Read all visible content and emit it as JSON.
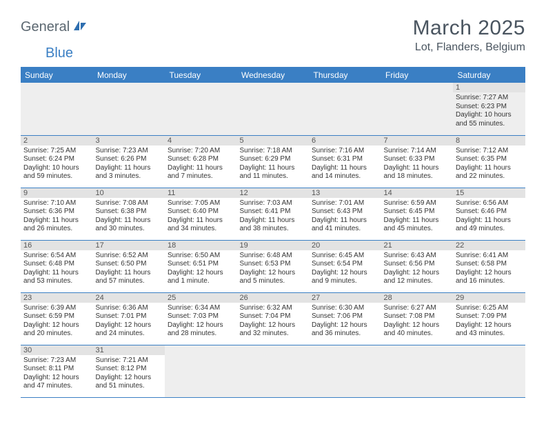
{
  "brand": {
    "name1": "General",
    "name2": "Blue"
  },
  "title": "March 2025",
  "location": "Lot, Flanders, Belgium",
  "colors": {
    "header_bg": "#3a7fc4",
    "header_text": "#ffffff",
    "daynum_bg": "#e3e3e3",
    "border": "#3a7fc4",
    "body_text": "#333333",
    "title_text": "#4a5560"
  },
  "fonts": {
    "body_pt": 10,
    "header_pt": 12,
    "title_pt": 30,
    "location_pt": 16
  },
  "weekdays": [
    "Sunday",
    "Monday",
    "Tuesday",
    "Wednesday",
    "Thursday",
    "Friday",
    "Saturday"
  ],
  "weeks": [
    [
      null,
      null,
      null,
      null,
      null,
      null,
      {
        "d": "1",
        "sr": "Sunrise: 7:27 AM",
        "ss": "Sunset: 6:23 PM",
        "dl1": "Daylight: 10 hours",
        "dl2": "and 55 minutes."
      }
    ],
    [
      {
        "d": "2",
        "sr": "Sunrise: 7:25 AM",
        "ss": "Sunset: 6:24 PM",
        "dl1": "Daylight: 10 hours",
        "dl2": "and 59 minutes."
      },
      {
        "d": "3",
        "sr": "Sunrise: 7:23 AM",
        "ss": "Sunset: 6:26 PM",
        "dl1": "Daylight: 11 hours",
        "dl2": "and 3 minutes."
      },
      {
        "d": "4",
        "sr": "Sunrise: 7:20 AM",
        "ss": "Sunset: 6:28 PM",
        "dl1": "Daylight: 11 hours",
        "dl2": "and 7 minutes."
      },
      {
        "d": "5",
        "sr": "Sunrise: 7:18 AM",
        "ss": "Sunset: 6:29 PM",
        "dl1": "Daylight: 11 hours",
        "dl2": "and 11 minutes."
      },
      {
        "d": "6",
        "sr": "Sunrise: 7:16 AM",
        "ss": "Sunset: 6:31 PM",
        "dl1": "Daylight: 11 hours",
        "dl2": "and 14 minutes."
      },
      {
        "d": "7",
        "sr": "Sunrise: 7:14 AM",
        "ss": "Sunset: 6:33 PM",
        "dl1": "Daylight: 11 hours",
        "dl2": "and 18 minutes."
      },
      {
        "d": "8",
        "sr": "Sunrise: 7:12 AM",
        "ss": "Sunset: 6:35 PM",
        "dl1": "Daylight: 11 hours",
        "dl2": "and 22 minutes."
      }
    ],
    [
      {
        "d": "9",
        "sr": "Sunrise: 7:10 AM",
        "ss": "Sunset: 6:36 PM",
        "dl1": "Daylight: 11 hours",
        "dl2": "and 26 minutes."
      },
      {
        "d": "10",
        "sr": "Sunrise: 7:08 AM",
        "ss": "Sunset: 6:38 PM",
        "dl1": "Daylight: 11 hours",
        "dl2": "and 30 minutes."
      },
      {
        "d": "11",
        "sr": "Sunrise: 7:05 AM",
        "ss": "Sunset: 6:40 PM",
        "dl1": "Daylight: 11 hours",
        "dl2": "and 34 minutes."
      },
      {
        "d": "12",
        "sr": "Sunrise: 7:03 AM",
        "ss": "Sunset: 6:41 PM",
        "dl1": "Daylight: 11 hours",
        "dl2": "and 38 minutes."
      },
      {
        "d": "13",
        "sr": "Sunrise: 7:01 AM",
        "ss": "Sunset: 6:43 PM",
        "dl1": "Daylight: 11 hours",
        "dl2": "and 41 minutes."
      },
      {
        "d": "14",
        "sr": "Sunrise: 6:59 AM",
        "ss": "Sunset: 6:45 PM",
        "dl1": "Daylight: 11 hours",
        "dl2": "and 45 minutes."
      },
      {
        "d": "15",
        "sr": "Sunrise: 6:56 AM",
        "ss": "Sunset: 6:46 PM",
        "dl1": "Daylight: 11 hours",
        "dl2": "and 49 minutes."
      }
    ],
    [
      {
        "d": "16",
        "sr": "Sunrise: 6:54 AM",
        "ss": "Sunset: 6:48 PM",
        "dl1": "Daylight: 11 hours",
        "dl2": "and 53 minutes."
      },
      {
        "d": "17",
        "sr": "Sunrise: 6:52 AM",
        "ss": "Sunset: 6:50 PM",
        "dl1": "Daylight: 11 hours",
        "dl2": "and 57 minutes."
      },
      {
        "d": "18",
        "sr": "Sunrise: 6:50 AM",
        "ss": "Sunset: 6:51 PM",
        "dl1": "Daylight: 12 hours",
        "dl2": "and 1 minute."
      },
      {
        "d": "19",
        "sr": "Sunrise: 6:48 AM",
        "ss": "Sunset: 6:53 PM",
        "dl1": "Daylight: 12 hours",
        "dl2": "and 5 minutes."
      },
      {
        "d": "20",
        "sr": "Sunrise: 6:45 AM",
        "ss": "Sunset: 6:54 PM",
        "dl1": "Daylight: 12 hours",
        "dl2": "and 9 minutes."
      },
      {
        "d": "21",
        "sr": "Sunrise: 6:43 AM",
        "ss": "Sunset: 6:56 PM",
        "dl1": "Daylight: 12 hours",
        "dl2": "and 12 minutes."
      },
      {
        "d": "22",
        "sr": "Sunrise: 6:41 AM",
        "ss": "Sunset: 6:58 PM",
        "dl1": "Daylight: 12 hours",
        "dl2": "and 16 minutes."
      }
    ],
    [
      {
        "d": "23",
        "sr": "Sunrise: 6:39 AM",
        "ss": "Sunset: 6:59 PM",
        "dl1": "Daylight: 12 hours",
        "dl2": "and 20 minutes."
      },
      {
        "d": "24",
        "sr": "Sunrise: 6:36 AM",
        "ss": "Sunset: 7:01 PM",
        "dl1": "Daylight: 12 hours",
        "dl2": "and 24 minutes."
      },
      {
        "d": "25",
        "sr": "Sunrise: 6:34 AM",
        "ss": "Sunset: 7:03 PM",
        "dl1": "Daylight: 12 hours",
        "dl2": "and 28 minutes."
      },
      {
        "d": "26",
        "sr": "Sunrise: 6:32 AM",
        "ss": "Sunset: 7:04 PM",
        "dl1": "Daylight: 12 hours",
        "dl2": "and 32 minutes."
      },
      {
        "d": "27",
        "sr": "Sunrise: 6:30 AM",
        "ss": "Sunset: 7:06 PM",
        "dl1": "Daylight: 12 hours",
        "dl2": "and 36 minutes."
      },
      {
        "d": "28",
        "sr": "Sunrise: 6:27 AM",
        "ss": "Sunset: 7:08 PM",
        "dl1": "Daylight: 12 hours",
        "dl2": "and 40 minutes."
      },
      {
        "d": "29",
        "sr": "Sunrise: 6:25 AM",
        "ss": "Sunset: 7:09 PM",
        "dl1": "Daylight: 12 hours",
        "dl2": "and 43 minutes."
      }
    ],
    [
      {
        "d": "30",
        "sr": "Sunrise: 7:23 AM",
        "ss": "Sunset: 8:11 PM",
        "dl1": "Daylight: 12 hours",
        "dl2": "and 47 minutes."
      },
      {
        "d": "31",
        "sr": "Sunrise: 7:21 AM",
        "ss": "Sunset: 8:12 PM",
        "dl1": "Daylight: 12 hours",
        "dl2": "and 51 minutes."
      },
      null,
      null,
      null,
      null,
      null
    ]
  ]
}
